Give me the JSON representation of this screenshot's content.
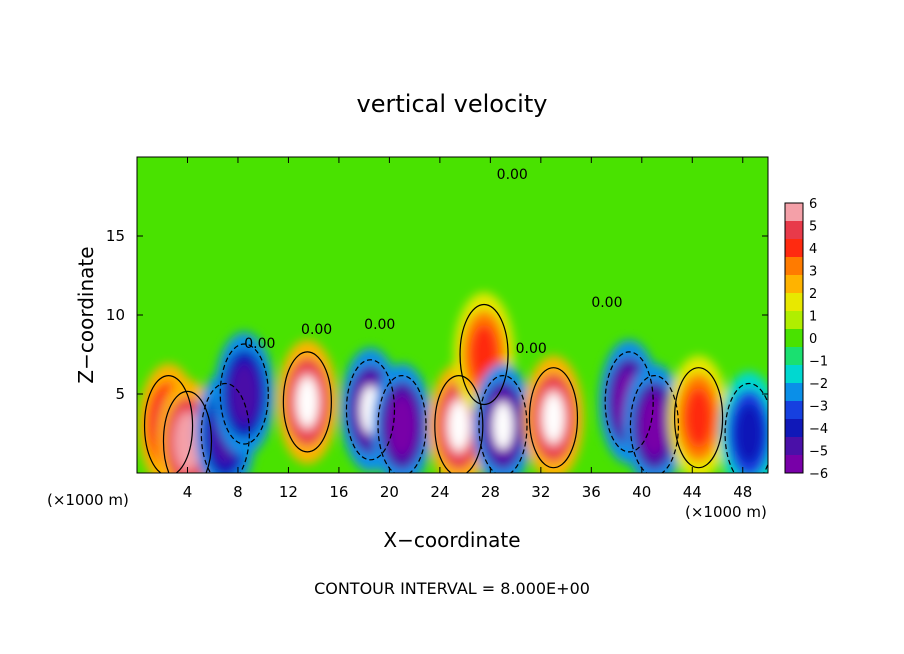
{
  "chart_data": {
    "type": "heatmap",
    "title": "vertical velocity",
    "xlabel": "X−coordinate",
    "ylabel": "Z−coordinate",
    "x_unit_left": "(×1000 m)",
    "x_unit_right": "(×1000 m)",
    "footer": "CONTOUR INTERVAL = 8.000E+00",
    "xlim": [
      0,
      50
    ],
    "ylim": [
      0,
      20
    ],
    "x_ticks": [
      "4",
      "8",
      "12",
      "16",
      "20",
      "24",
      "28",
      "32",
      "36",
      "40",
      "44",
      "48"
    ],
    "y_ticks": [
      "5",
      "10",
      "15"
    ],
    "colorbar": {
      "min": -6,
      "max": 6,
      "tick_labels": [
        "6",
        "5",
        "4",
        "3",
        "2",
        "1",
        "0",
        "−1",
        "−2",
        "−3",
        "−4",
        "−5",
        "−6"
      ],
      "colors": [
        "#f4a0a8",
        "#e83a4a",
        "#ff2a10",
        "#ff7b00",
        "#ffb300",
        "#e8e800",
        "#b0ee00",
        "#49e200",
        "#1ae070",
        "#00d8d0",
        "#0a8fe8",
        "#1640e0",
        "#1018b8",
        "#4a10a8",
        "#7800a8"
      ]
    },
    "contour_labels": [
      "0.00",
      "0.00",
      "0.00",
      "0.00",
      "0.00",
      "0.00"
    ],
    "features": [
      {
        "x": 2.5,
        "z": 3.0,
        "value": 5.5
      },
      {
        "x": 4.0,
        "z": 2.0,
        "value": 6.0
      },
      {
        "x": 7.0,
        "z": 2.5,
        "value": -5.5
      },
      {
        "x": 8.5,
        "z": 5.0,
        "value": -5.0
      },
      {
        "x": 13.5,
        "z": 4.5,
        "value": 8.0
      },
      {
        "x": 18.5,
        "z": 4.0,
        "value": -7.0
      },
      {
        "x": 21.0,
        "z": 3.0,
        "value": -6.0
      },
      {
        "x": 25.5,
        "z": 3.0,
        "value": 7.0
      },
      {
        "x": 27.5,
        "z": 7.5,
        "value": 4.0
      },
      {
        "x": 29.0,
        "z": 3.0,
        "value": -7.0
      },
      {
        "x": 33.0,
        "z": 3.5,
        "value": 8.0
      },
      {
        "x": 39.0,
        "z": 4.5,
        "value": -6.0
      },
      {
        "x": 41.0,
        "z": 3.0,
        "value": -6.0
      },
      {
        "x": 44.5,
        "z": 3.5,
        "value": 4.0
      },
      {
        "x": 48.5,
        "z": 2.5,
        "value": -4.5
      }
    ]
  }
}
